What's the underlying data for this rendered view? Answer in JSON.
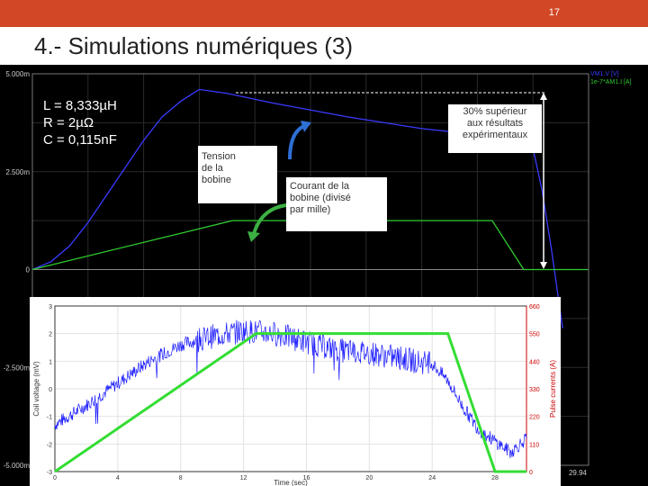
{
  "slide": {
    "number": "17",
    "title": "4.- Simulations numériques (3)",
    "accent_color": "#d24726"
  },
  "simulation": {
    "params": [
      "L = 8,333µH",
      "R = 2µΩ",
      "C = 0,115nF"
    ],
    "callouts": {
      "tension": [
        "Tension",
        "de la",
        "bobine"
      ],
      "courant": [
        "Courant de la",
        "bobine (divisé",
        "par mille)"
      ],
      "superieur": [
        "30% supérieur",
        "aux résultats",
        "expérimentaux"
      ]
    }
  },
  "chart_data": [
    {
      "type": "line",
      "title": "",
      "xlabel": "",
      "ylabel": "",
      "yticks": [
        "5.000m",
        "2.500m",
        "0",
        "-2.500m",
        "-5.000m"
      ],
      "xticks_visible": [
        "29.94"
      ],
      "ylim": [
        -0.005,
        0.005
      ],
      "xlim": [
        0,
        30
      ],
      "legend": [
        "VM1.V [V]",
        "1e-7*AM1.I [A]"
      ],
      "legend_placement": "top-right",
      "background": "#000000",
      "series": [
        {
          "name": "VM1.V [V]",
          "color": "#3a3aff",
          "x": [
            0,
            1,
            2,
            3,
            4,
            5,
            6,
            7,
            8,
            9,
            10.5,
            13,
            17,
            21,
            25,
            27,
            27.5,
            28,
            28.6
          ],
          "y": [
            0,
            0.0002,
            0.0006,
            0.0012,
            0.0019,
            0.0026,
            0.0033,
            0.0039,
            0.0043,
            0.0046,
            0.0045,
            0.00425,
            0.0039,
            0.0036,
            0.0034,
            0.0031,
            0.002,
            0.0005,
            -0.0015
          ]
        },
        {
          "name": "1e-7*AM1.I [A]",
          "color": "#2ecc2e",
          "x": [
            0,
            10.8,
            24.8,
            26.5,
            29.94
          ],
          "y": [
            0,
            0.00125,
            0.00125,
            0,
            0
          ]
        }
      ]
    },
    {
      "type": "line",
      "title": "",
      "xlabel": "Time (sec)",
      "ylabel": "Coil voltage (mV)",
      "y2label": "Pulse currents (A)",
      "xticks": [
        "0",
        "4",
        "8",
        "12",
        "16",
        "20",
        "24",
        "28"
      ],
      "yticks": [
        "-3",
        "-2",
        "-1",
        "0",
        "1",
        "2",
        "3"
      ],
      "y2ticks": [
        "0",
        "110",
        "220",
        "330",
        "440",
        "550",
        "660"
      ],
      "xlim": [
        0,
        30
      ],
      "ylim": [
        -3,
        3
      ],
      "y2lim": [
        0,
        660
      ],
      "grid": true,
      "background": "#ffffff",
      "series": [
        {
          "name": "",
          "color": "#1a1aff",
          "x": [
            0,
            2,
            4,
            6,
            8,
            10,
            12,
            14,
            16,
            18,
            20,
            22,
            24,
            25,
            26,
            27,
            28,
            29,
            30
          ],
          "y": [
            -1.3,
            -0.6,
            0.2,
            1.0,
            1.6,
            1.9,
            2.1,
            2.0,
            1.7,
            1.4,
            1.3,
            1.1,
            0.9,
            0.3,
            -0.7,
            -1.5,
            -1.9,
            -2.3,
            -1.8
          ]
        },
        {
          "name": "",
          "color": "#33dd33",
          "axis": "y2",
          "x": [
            0,
            12.8,
            25.0,
            28.0,
            30.0
          ],
          "y": [
            0,
            550,
            550,
            0,
            0
          ]
        }
      ]
    }
  ]
}
